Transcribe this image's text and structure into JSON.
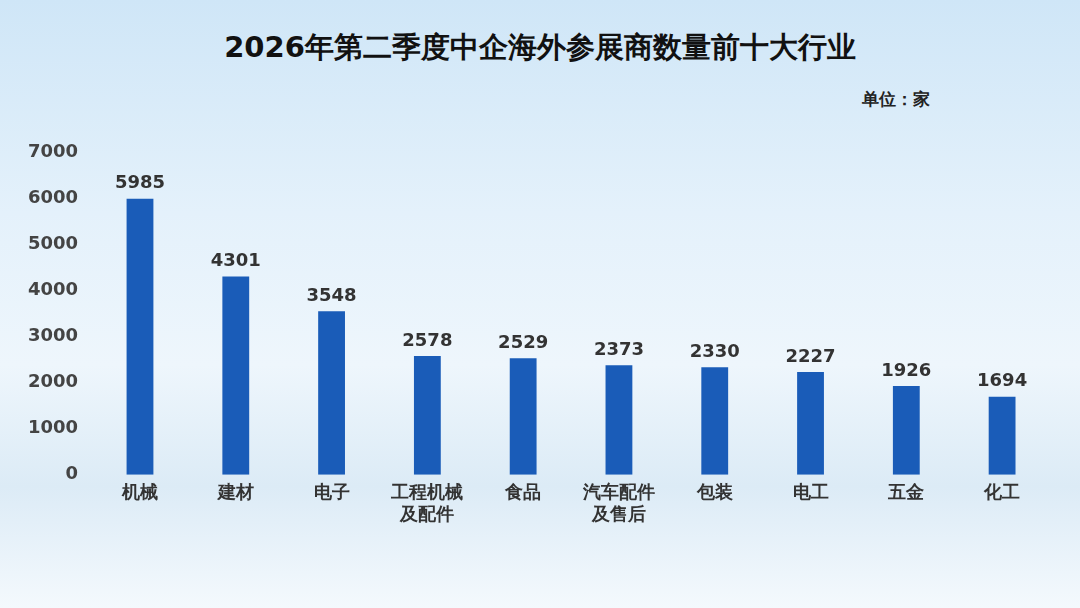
{
  "chart_data": {
    "type": "bar",
    "title": "2026年第二季度中企海外参展商数量前十大行业",
    "annotations": [
      "单位：家"
    ],
    "categories": [
      "机械",
      "建材",
      "电子",
      "工程机械及配件",
      "食品",
      "汽车配件及售后",
      "包装",
      "电工",
      "五金",
      "化工"
    ],
    "values": [
      5985,
      4301,
      3548,
      2578,
      2529,
      2373,
      2330,
      2227,
      1926,
      1694
    ],
    "color": "#1a5cb8",
    "ylim": [
      0,
      7000
    ],
    "yticks": [
      0,
      1000,
      2000,
      3000,
      4000,
      5000,
      6000,
      7000
    ],
    "grid": false,
    "data_labels": true
  }
}
